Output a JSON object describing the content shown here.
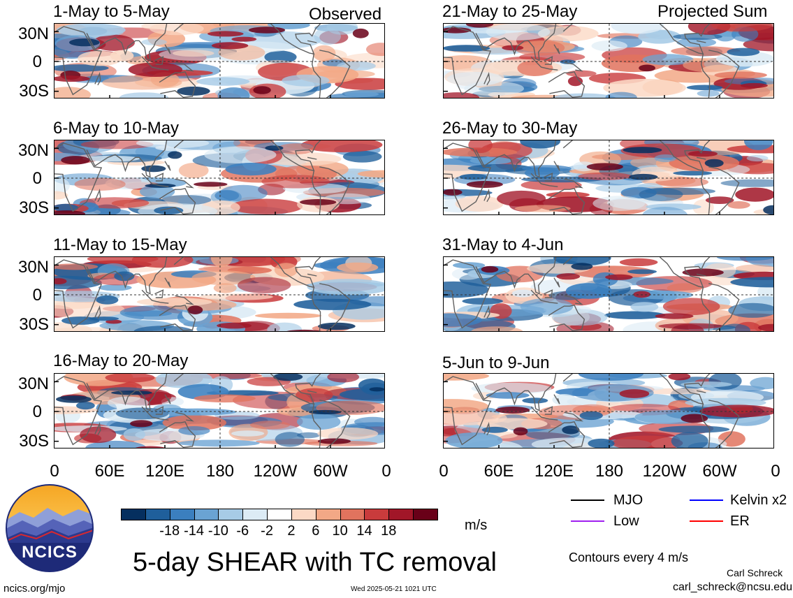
{
  "left_column": {
    "header_right": "Observed",
    "panels": [
      {
        "title": "1-May to 5-May"
      },
      {
        "title": "6-May to 10-May"
      },
      {
        "title": "11-May to 15-May"
      },
      {
        "title": "16-May to 20-May"
      }
    ]
  },
  "right_column": {
    "header_right": "Projected Sum",
    "panels": [
      {
        "title": "21-May to 25-May"
      },
      {
        "title": "26-May to 30-May"
      },
      {
        "title": "31-May to 4-Jun"
      },
      {
        "title": "5-Jun to 9-Jun"
      }
    ]
  },
  "y_axis_labels": [
    "30N",
    "0",
    "30S"
  ],
  "x_axis_labels": [
    "0",
    "60E",
    "120E",
    "180",
    "120W",
    "60W",
    "0"
  ],
  "colorbar": {
    "colors": [
      "#052f5f",
      "#1f5f9b",
      "#3b7fbf",
      "#6aa3d3",
      "#a7cbe6",
      "#dcebf5",
      "#ffffff",
      "#fbd9c5",
      "#f2a886",
      "#e1735e",
      "#c93b3c",
      "#a11628",
      "#690018"
    ],
    "labels": [
      "-18",
      "-14",
      "-10",
      "-6",
      "-2",
      "2",
      "6",
      "10",
      "14",
      "18"
    ],
    "units": "m/s"
  },
  "legend": {
    "items": [
      {
        "label": "MJO",
        "color": "#000000"
      },
      {
        "label": "Kelvin x2",
        "color": "#0000ff"
      },
      {
        "label": "Low",
        "color": "#a020f0"
      },
      {
        "label": "ER",
        "color": "#ff0000"
      }
    ],
    "contours_note": "Contours every 4 m/s"
  },
  "main_title": "5-day SHEAR with TC removal",
  "logo_text": "NCICS",
  "footer": {
    "url": "ncics.org/mjo",
    "timestamp": "Wed 2025-05-21 1021 UTC",
    "author": "Carl Schreck",
    "email": "carl_schreck@ncsu.edu"
  }
}
